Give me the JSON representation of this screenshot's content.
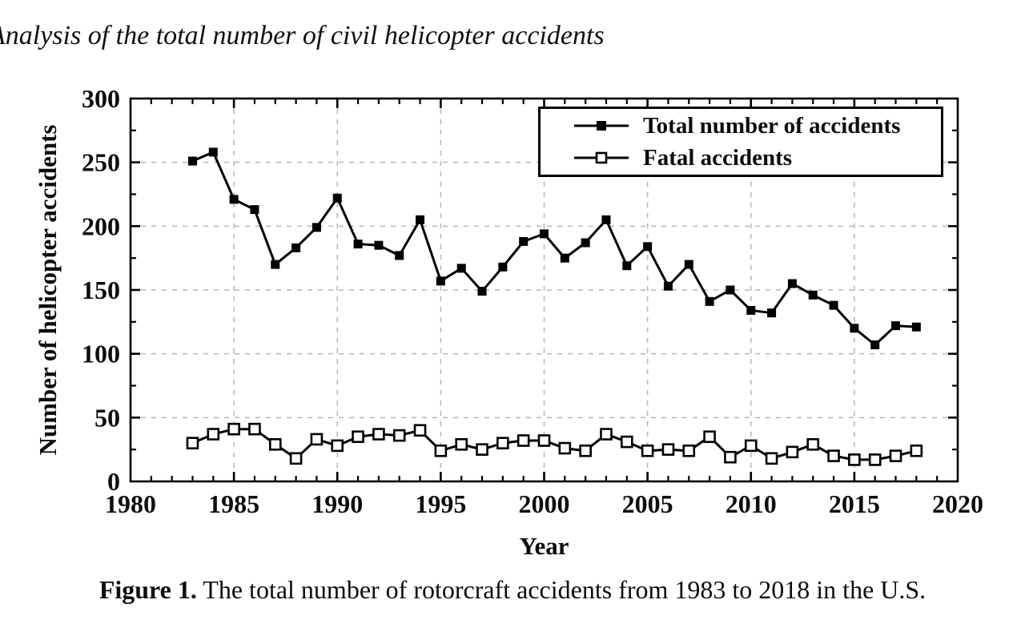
{
  "page": {
    "heading": "Analysis of the total number of civil helicopter accidents",
    "caption_prefix": "Figure 1.",
    "caption_text": " The total number of rotorcraft accidents from 1983 to 2018 in the U.S."
  },
  "chart_data": {
    "type": "line",
    "title": "",
    "xlabel": "Year",
    "ylabel": "Number of helicopter accidents",
    "xlim": [
      1980,
      2020
    ],
    "ylim": [
      0,
      300
    ],
    "x_major_ticks": [
      1980,
      1985,
      1990,
      1995,
      2000,
      2005,
      2010,
      2015,
      2020
    ],
    "x_minor_step": 1,
    "y_major_ticks": [
      0,
      50,
      100,
      150,
      200,
      250,
      300
    ],
    "y_minor_step": 25,
    "x_grid_years": [
      1985,
      1990,
      1995,
      2000,
      2005,
      2010,
      2015
    ],
    "y_grid_values": [
      50,
      100,
      150,
      200,
      250
    ],
    "grid_style": "dashed gray at major ticks, both axes",
    "legend_position": "top-right inside plot",
    "x": [
      1983,
      1984,
      1985,
      1986,
      1987,
      1988,
      1989,
      1990,
      1991,
      1992,
      1993,
      1994,
      1995,
      1996,
      1997,
      1998,
      1999,
      2000,
      2001,
      2002,
      2003,
      2004,
      2005,
      2006,
      2007,
      2008,
      2009,
      2010,
      2011,
      2012,
      2013,
      2014,
      2015,
      2016,
      2017,
      2018
    ],
    "series": [
      {
        "name": "Total number of accidents",
        "marker": "filled-square",
        "values": [
          251,
          258,
          221,
          213,
          170,
          183,
          199,
          222,
          186,
          185,
          177,
          205,
          157,
          167,
          149,
          168,
          188,
          194,
          175,
          187,
          205,
          169,
          184,
          153,
          170,
          141,
          150,
          134,
          132,
          155,
          146,
          138,
          120,
          107,
          122,
          121
        ]
      },
      {
        "name": "Fatal accidents",
        "marker": "open-square",
        "values": [
          30,
          37,
          41,
          41,
          29,
          18,
          33,
          28,
          35,
          37,
          36,
          40,
          24,
          29,
          25,
          30,
          32,
          32,
          26,
          24,
          37,
          31,
          24,
          25,
          24,
          35,
          19,
          28,
          18,
          23,
          29,
          20,
          17,
          17,
          20,
          24
        ]
      }
    ],
    "colors": {
      "line": "#000000",
      "grid": "#b5b5b5",
      "background": "#ffffff",
      "text": "#0d0d0d"
    }
  }
}
